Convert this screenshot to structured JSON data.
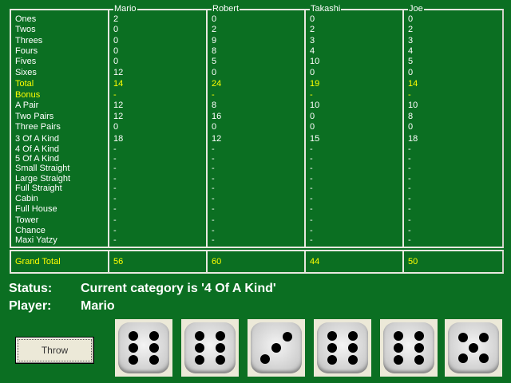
{
  "categories": [
    "Ones",
    "Twos",
    "Threes",
    "Fours",
    "Fives",
    "Sixes",
    "Total",
    "Bonus",
    "A Pair",
    "Two Pairs",
    "Three Pairs",
    "3 Of A Kind",
    "4 Of A Kind",
    "5 Of A Kind",
    "Small Straight",
    "Large Straight",
    "Full Straight",
    "Cabin",
    "Full House",
    "Tower",
    "Chance",
    "Maxi Yatzy"
  ],
  "highlight_rows": [
    "Total",
    "Bonus"
  ],
  "grand_total_label": "Grand Total",
  "players": [
    {
      "name": "Mario",
      "scores": [
        "2",
        "0",
        "0",
        "0",
        "0",
        "12",
        "14",
        "-",
        "12",
        "12",
        "0",
        "18",
        "-",
        "-",
        "-",
        "-",
        "-",
        "-",
        "-",
        "-",
        "-",
        "-"
      ],
      "grand_total": "56"
    },
    {
      "name": "Robert",
      "scores": [
        "0",
        "2",
        "9",
        "8",
        "5",
        "0",
        "24",
        "-",
        "8",
        "16",
        "0",
        "12",
        "-",
        "-",
        "-",
        "-",
        "-",
        "-",
        "-",
        "-",
        "-",
        "-"
      ],
      "grand_total": "60"
    },
    {
      "name": "Takashi",
      "scores": [
        "0",
        "2",
        "3",
        "4",
        "10",
        "0",
        "19",
        "-",
        "10",
        "0",
        "0",
        "15",
        "-",
        "-",
        "-",
        "-",
        "-",
        "-",
        "-",
        "-",
        "-",
        "-"
      ],
      "grand_total": "44"
    },
    {
      "name": "Joe",
      "scores": [
        "0",
        "2",
        "3",
        "4",
        "5",
        "0",
        "14",
        "-",
        "10",
        "8",
        "0",
        "18",
        "-",
        "-",
        "-",
        "-",
        "-",
        "-",
        "-",
        "-",
        "-",
        "-"
      ],
      "grand_total": "50"
    }
  ],
  "status": {
    "label": "Status:",
    "value": "Current category is '4 Of A Kind'"
  },
  "player": {
    "label": "Player:",
    "value": "Mario"
  },
  "throw_label": "Throw",
  "dice": [
    6,
    6,
    3,
    6,
    6,
    5
  ],
  "colors": {
    "background": "#0b6f22",
    "highlight": "#ffff00"
  }
}
